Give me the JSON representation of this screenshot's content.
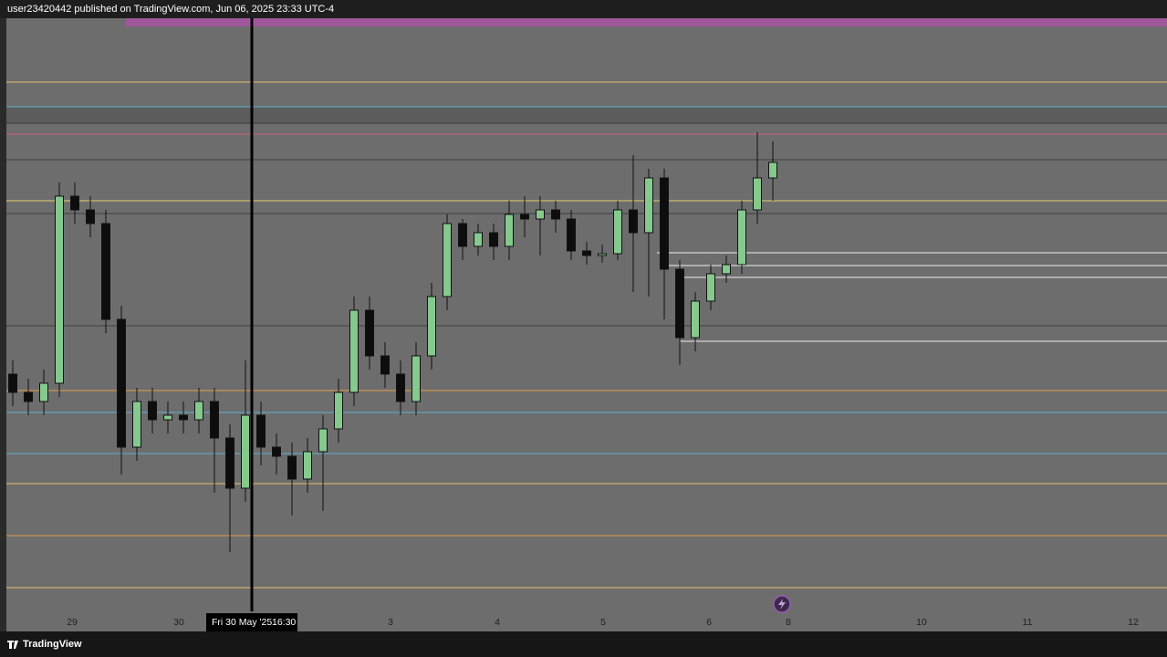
{
  "header": {
    "text": "user23420442 published on TradingView.com, Jun 06, 2025 23:33 UTC-4"
  },
  "chart_data": {
    "type": "candlestick",
    "ylim": [
      0,
      670
    ],
    "open": [
      280,
      260,
      250,
      270,
      475,
      460,
      445,
      340,
      200,
      250,
      230,
      235,
      230,
      250,
      210,
      155,
      235,
      200,
      190,
      165,
      195,
      220,
      260,
      350,
      300,
      280,
      250,
      300,
      365,
      445,
      420,
      435,
      420,
      455,
      450,
      460,
      450,
      415,
      410,
      412,
      460,
      435,
      495,
      395,
      320,
      360,
      390,
      400,
      460,
      495
    ],
    "high": [
      295,
      275,
      285,
      490,
      490,
      475,
      460,
      355,
      265,
      265,
      250,
      250,
      265,
      265,
      225,
      295,
      250,
      215,
      205,
      210,
      235,
      275,
      365,
      365,
      315,
      295,
      315,
      380,
      455,
      450,
      445,
      445,
      470,
      475,
      475,
      470,
      460,
      425,
      422,
      470,
      520,
      505,
      505,
      405,
      370,
      400,
      410,
      470,
      545,
      535
    ],
    "low": [
      245,
      235,
      235,
      255,
      445,
      430,
      325,
      170,
      185,
      215,
      215,
      215,
      215,
      150,
      85,
      140,
      180,
      170,
      125,
      150,
      130,
      205,
      245,
      285,
      265,
      235,
      235,
      285,
      350,
      405,
      410,
      405,
      405,
      430,
      410,
      435,
      405,
      400,
      402,
      405,
      370,
      365,
      340,
      290,
      305,
      350,
      380,
      390,
      445,
      470
    ],
    "close": [
      260,
      250,
      270,
      475,
      460,
      445,
      340,
      200,
      250,
      230,
      235,
      230,
      250,
      210,
      155,
      235,
      200,
      190,
      165,
      195,
      220,
      260,
      350,
      300,
      280,
      250,
      300,
      365,
      445,
      420,
      435,
      420,
      455,
      450,
      460,
      450,
      415,
      410,
      412,
      460,
      435,
      495,
      395,
      320,
      360,
      390,
      400,
      460,
      495,
      512
    ]
  },
  "time_axis": {
    "labels": [
      "29",
      "30",
      "3",
      "4",
      "5",
      "6",
      "8",
      "10",
      "11",
      "12"
    ]
  },
  "crosshair": {
    "date": "Fri 30 May '25",
    "time": "16:30"
  },
  "footer": {
    "brand": "TradingView"
  }
}
